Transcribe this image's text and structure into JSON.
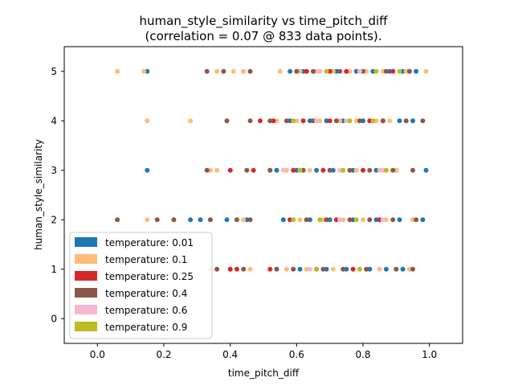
{
  "chart_data": {
    "type": "scatter",
    "title": "human_style_similarity vs time_pitch_diff",
    "subtitle": "(correlation = 0.07 @ 833 data points).",
    "xlabel": "time_pitch_diff",
    "ylabel": "human_style_similarity",
    "xlim": [
      -0.1,
      1.1
    ],
    "ylim": [
      -0.5,
      5.5
    ],
    "xticks": [
      "0.0",
      "0.2",
      "0.4",
      "0.6",
      "0.8",
      "1.0"
    ],
    "yticks": [
      "0",
      "1",
      "2",
      "3",
      "4",
      "5"
    ],
    "grid": false,
    "legend_position": "lower-left",
    "series": [
      {
        "name": "temperature: 0.01",
        "color": "#1f77b4",
        "points": [
          [
            0.15,
            5
          ],
          [
            0.58,
            5
          ],
          [
            0.62,
            5
          ],
          [
            0.67,
            5
          ],
          [
            0.72,
            5
          ],
          [
            0.78,
            5
          ],
          [
            0.83,
            5
          ],
          [
            0.88,
            5
          ],
          [
            0.92,
            5
          ],
          [
            0.96,
            5
          ],
          [
            0.58,
            4
          ],
          [
            0.64,
            4
          ],
          [
            0.69,
            4
          ],
          [
            0.74,
            4
          ],
          [
            0.8,
            4
          ],
          [
            0.86,
            4
          ],
          [
            0.91,
            4
          ],
          [
            0.95,
            4
          ],
          [
            0.15,
            3
          ],
          [
            0.54,
            3
          ],
          [
            0.6,
            3
          ],
          [
            0.66,
            3
          ],
          [
            0.71,
            3
          ],
          [
            0.77,
            3
          ],
          [
            0.84,
            3
          ],
          [
            0.9,
            3
          ],
          [
            0.99,
            3
          ],
          [
            0.28,
            2
          ],
          [
            0.31,
            2
          ],
          [
            0.39,
            2
          ],
          [
            0.45,
            2
          ],
          [
            0.56,
            2
          ],
          [
            0.64,
            2
          ],
          [
            0.7,
            2
          ],
          [
            0.77,
            2
          ],
          [
            0.84,
            2
          ],
          [
            0.91,
            2
          ],
          [
            0.98,
            2
          ],
          [
            0.61,
            1
          ],
          [
            0.69,
            1
          ],
          [
            0.75,
            1
          ],
          [
            0.82,
            1
          ],
          [
            0.87,
            1
          ],
          [
            0.92,
            1
          ]
        ]
      },
      {
        "name": "temperature: 0.1",
        "color": "#ffbb78",
        "points": [
          [
            0.06,
            5
          ],
          [
            0.14,
            5
          ],
          [
            0.36,
            5
          ],
          [
            0.41,
            5
          ],
          [
            0.44,
            5
          ],
          [
            0.55,
            5
          ],
          [
            0.61,
            5
          ],
          [
            0.66,
            5
          ],
          [
            0.71,
            5
          ],
          [
            0.76,
            5
          ],
          [
            0.81,
            5
          ],
          [
            0.86,
            5
          ],
          [
            0.93,
            5
          ],
          [
            0.99,
            5
          ],
          [
            0.15,
            4
          ],
          [
            0.28,
            4
          ],
          [
            0.54,
            4
          ],
          [
            0.6,
            4
          ],
          [
            0.67,
            4
          ],
          [
            0.73,
            4
          ],
          [
            0.78,
            4
          ],
          [
            0.84,
            4
          ],
          [
            0.88,
            4
          ],
          [
            0.34,
            3
          ],
          [
            0.36,
            3
          ],
          [
            0.57,
            3
          ],
          [
            0.64,
            3
          ],
          [
            0.7,
            3
          ],
          [
            0.78,
            3
          ],
          [
            0.85,
            3
          ],
          [
            0.9,
            3
          ],
          [
            0.15,
            2
          ],
          [
            0.44,
            2
          ],
          [
            0.61,
            2
          ],
          [
            0.68,
            2
          ],
          [
            0.74,
            2
          ],
          [
            0.8,
            2
          ],
          [
            0.87,
            2
          ],
          [
            0.95,
            2
          ],
          [
            0.34,
            1
          ],
          [
            0.4,
            1
          ],
          [
            0.46,
            1
          ],
          [
            0.57,
            1
          ],
          [
            0.63,
            1
          ],
          [
            0.71,
            1
          ],
          [
            0.79,
            1
          ],
          [
            0.85,
            1
          ],
          [
            0.94,
            1
          ]
        ]
      },
      {
        "name": "temperature: 0.25",
        "color": "#d62728",
        "points": [
          [
            0.63,
            5
          ],
          [
            0.7,
            5
          ],
          [
            0.75,
            5
          ],
          [
            0.89,
            5
          ],
          [
            0.49,
            4
          ],
          [
            0.53,
            4
          ],
          [
            0.62,
            4
          ],
          [
            0.7,
            4
          ],
          [
            0.82,
            4
          ],
          [
            0.4,
            3
          ],
          [
            0.47,
            3
          ],
          [
            0.59,
            3
          ],
          [
            0.68,
            3
          ],
          [
            0.8,
            3
          ],
          [
            0.58,
            2
          ],
          [
            0.72,
            2
          ],
          [
            0.85,
            2
          ],
          [
            0.4,
            1
          ],
          [
            0.42,
            1
          ],
          [
            0.52,
            1
          ],
          [
            0.66,
            1
          ],
          [
            0.77,
            1
          ]
        ]
      },
      {
        "name": "temperature: 0.4",
        "color": "#8c564b",
        "points": [
          [
            0.33,
            5
          ],
          [
            0.38,
            5
          ],
          [
            0.46,
            5
          ],
          [
            0.6,
            5
          ],
          [
            0.65,
            5
          ],
          [
            0.73,
            5
          ],
          [
            0.8,
            5
          ],
          [
            0.87,
            5
          ],
          [
            0.94,
            5
          ],
          [
            0.39,
            4
          ],
          [
            0.46,
            4
          ],
          [
            0.52,
            4
          ],
          [
            0.57,
            4
          ],
          [
            0.65,
            4
          ],
          [
            0.72,
            4
          ],
          [
            0.79,
            4
          ],
          [
            0.86,
            4
          ],
          [
            0.93,
            4
          ],
          [
            0.98,
            4
          ],
          [
            0.33,
            3
          ],
          [
            0.45,
            3
          ],
          [
            0.52,
            3
          ],
          [
            0.62,
            3
          ],
          [
            0.7,
            3
          ],
          [
            0.76,
            3
          ],
          [
            0.82,
            3
          ],
          [
            0.89,
            3
          ],
          [
            0.95,
            3
          ],
          [
            0.06,
            2
          ],
          [
            0.18,
            2
          ],
          [
            0.23,
            2
          ],
          [
            0.34,
            2
          ],
          [
            0.42,
            2
          ],
          [
            0.46,
            2
          ],
          [
            0.63,
            2
          ],
          [
            0.69,
            2
          ],
          [
            0.76,
            2
          ],
          [
            0.82,
            2
          ],
          [
            0.89,
            2
          ],
          [
            0.96,
            2
          ],
          [
            0.36,
            1
          ],
          [
            0.44,
            1
          ],
          [
            0.54,
            1
          ],
          [
            0.59,
            1
          ],
          [
            0.68,
            1
          ],
          [
            0.74,
            1
          ],
          [
            0.81,
            1
          ],
          [
            0.9,
            1
          ],
          [
            0.95,
            1
          ]
        ]
      },
      {
        "name": "temperature: 0.6",
        "color": "#f7b6d2",
        "points": [
          [
            0.67,
            5
          ],
          [
            0.79,
            5
          ],
          [
            0.66,
            4
          ],
          [
            0.75,
            4
          ],
          [
            0.56,
            3
          ],
          [
            0.73,
            3
          ],
          [
            0.86,
            3
          ],
          [
            0.73,
            2
          ],
          [
            0.86,
            2
          ],
          [
            0.64,
            1
          ]
        ]
      },
      {
        "name": "temperature: 0.9",
        "color": "#bcbd22",
        "points": [
          [
            0.69,
            5
          ],
          [
            0.84,
            5
          ],
          [
            0.91,
            5
          ],
          [
            0.59,
            4
          ],
          [
            0.76,
            4
          ],
          [
            0.83,
            4
          ],
          [
            0.61,
            3
          ],
          [
            0.74,
            3
          ],
          [
            0.87,
            3
          ],
          [
            0.59,
            2
          ],
          [
            0.67,
            2
          ],
          [
            0.78,
            2
          ],
          [
            0.66,
            1
          ],
          [
            0.79,
            1
          ]
        ]
      }
    ]
  }
}
